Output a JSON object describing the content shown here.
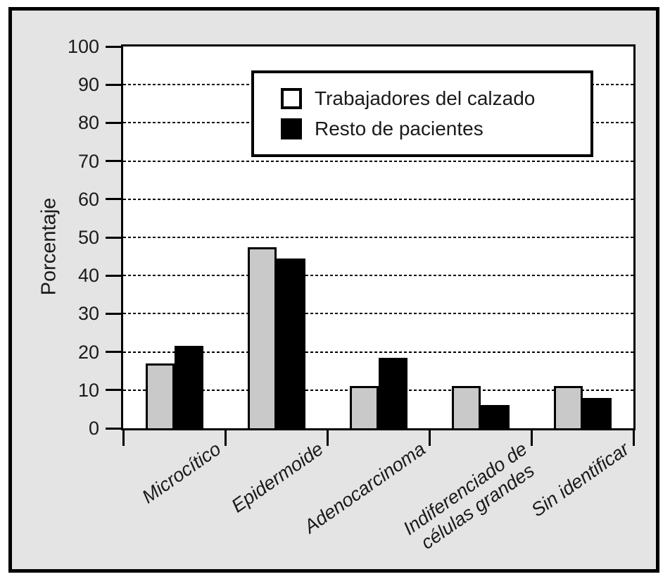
{
  "figure": {
    "panel_background": "#e4e4e4",
    "plot_background": "#ffffff",
    "frame_color": "#000000"
  },
  "chart_data": {
    "type": "bar",
    "title": "",
    "xlabel": "",
    "ylabel": "Porcentaje",
    "ylim": [
      0,
      100
    ],
    "yticks": [
      0,
      10,
      20,
      30,
      40,
      50,
      60,
      70,
      80,
      90,
      100
    ],
    "grid": "horizontal dashed lines at 10-90",
    "legend_position": "top-center inside plot",
    "categories": [
      "Microcítico",
      "Epidermoide",
      "Adenocarcinoma",
      "Indiferenciado de\ncélulas grandes",
      "Sin identificar"
    ],
    "series": [
      {
        "name": "Trabajadores del calzado",
        "color": "#c9c9c9",
        "values": [
          17,
          47.5,
          11,
          11,
          11
        ]
      },
      {
        "name": "Resto de pacientes",
        "color": "#000000",
        "values": [
          21.5,
          44.5,
          18.5,
          6,
          8
        ]
      }
    ]
  }
}
